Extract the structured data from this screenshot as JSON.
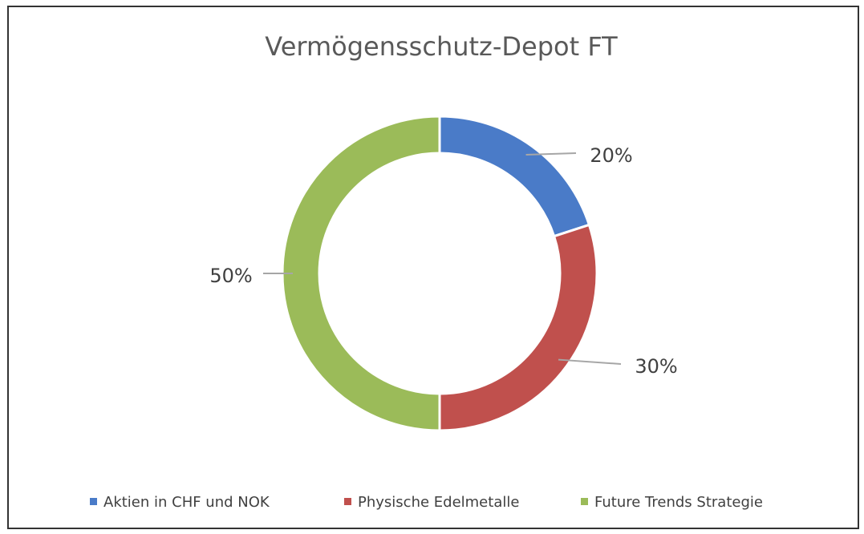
{
  "chart_data": {
    "type": "doughnut",
    "title": "Vermögensschutz-Depot FT",
    "categories": [
      "Aktien in CHF und NOK",
      "Physische Edelmetalle",
      "Future Trends Strategie"
    ],
    "values": [
      20,
      30,
      50
    ],
    "value_labels": [
      "20%",
      "30%",
      "50%"
    ],
    "colors": [
      "#4a7bc8",
      "#c0504d",
      "#9bbb59"
    ],
    "legend": "bottom"
  }
}
